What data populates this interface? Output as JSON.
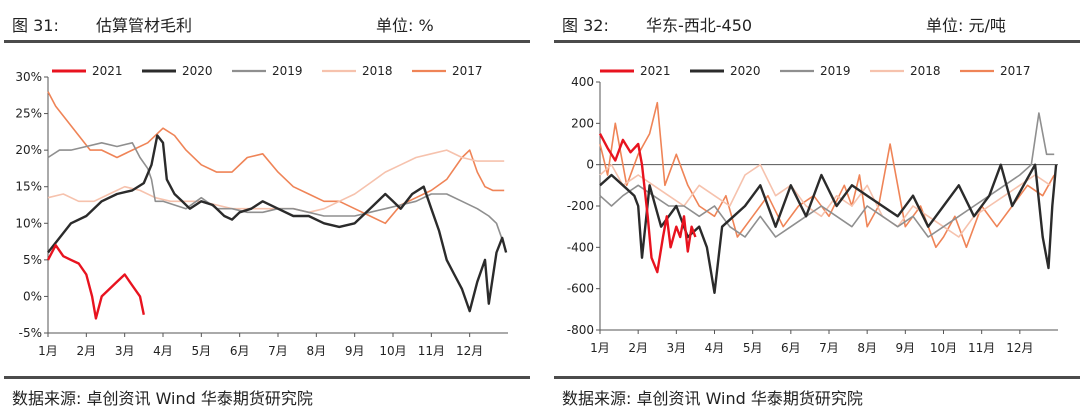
{
  "charts": [
    {
      "figure_label": "图 31:",
      "title": "估算管材毛利",
      "unit_label": "单位: %",
      "source": "数据来源: 卓创资讯 Wind 华泰期货研究院"
    },
    {
      "figure_label": "图 32:",
      "title": "华东-西北-450",
      "unit_label": "单位: 元/吨",
      "source": "数据来源: 卓创资讯 Wind 华泰期货研究院"
    }
  ],
  "chart_data": [
    {
      "type": "line",
      "title": "估算管材毛利",
      "ylabel": "%",
      "ylim": [
        -5,
        30
      ],
      "yticks": [
        -5,
        0,
        5,
        10,
        15,
        20,
        25,
        30
      ],
      "ytick_labels": [
        "-5%",
        "0%",
        "5%",
        "10%",
        "15%",
        "20%",
        "25%",
        "30%"
      ],
      "xlim": [
        1,
        13
      ],
      "xticks": [
        1,
        2,
        3,
        4,
        5,
        6,
        7,
        8,
        9,
        10,
        11,
        12
      ],
      "xtick_labels": [
        "1月",
        "2月",
        "3月",
        "4月",
        "5月",
        "6月",
        "7月",
        "8月",
        "9月",
        "10月",
        "11月",
        "12月"
      ],
      "legend": "top",
      "series": [
        {
          "name": "2021",
          "color": "#e8131f",
          "width": 2.4,
          "x": [
            1.0,
            1.2,
            1.4,
            1.6,
            1.8,
            2.0,
            2.15,
            2.25,
            2.4,
            2.6,
            2.8,
            3.0,
            3.2,
            3.4,
            3.5
          ],
          "y": [
            5,
            7,
            5.5,
            5,
            4.5,
            3,
            0,
            -3,
            0,
            1,
            2,
            3,
            1.5,
            0,
            -2.5
          ]
        },
        {
          "name": "2020",
          "color": "#2b2b2b",
          "width": 2.4,
          "x": [
            1.0,
            1.3,
            1.6,
            2.0,
            2.4,
            2.8,
            3.2,
            3.5,
            3.7,
            3.85,
            4.0,
            4.1,
            4.3,
            4.5,
            4.7,
            5.0,
            5.3,
            5.6,
            5.8,
            6.0,
            6.3,
            6.6,
            7.0,
            7.4,
            7.8,
            8.2,
            8.6,
            9.0,
            9.4,
            9.8,
            10.0,
            10.2,
            10.5,
            10.8,
            11.0,
            11.2,
            11.4,
            11.6,
            11.8,
            12.0,
            12.2,
            12.4,
            12.5,
            12.7,
            12.85,
            12.95
          ],
          "y": [
            6,
            8,
            10,
            11,
            13,
            14,
            14.5,
            15.5,
            18,
            22,
            21,
            16,
            14,
            13,
            12,
            13,
            12.5,
            11,
            10.5,
            11.5,
            12,
            13,
            12,
            11,
            11,
            10,
            9.5,
            10,
            12,
            14,
            13,
            12,
            14,
            15,
            12,
            9,
            5,
            3,
            1,
            -2,
            2,
            5,
            -1,
            6,
            8,
            6
          ]
        },
        {
          "name": "2019",
          "color": "#8f8f8f",
          "width": 1.6,
          "x": [
            1.0,
            1.3,
            1.6,
            2.0,
            2.4,
            2.8,
            3.2,
            3.4,
            3.6,
            3.7,
            3.8,
            4.0,
            4.3,
            4.6,
            5.0,
            5.4,
            5.8,
            6.2,
            6.6,
            7.0,
            7.4,
            7.8,
            8.2,
            8.6,
            9.0,
            9.4,
            9.8,
            10.2,
            10.6,
            11.0,
            11.4,
            11.8,
            12.2,
            12.5,
            12.7,
            12.9
          ],
          "y": [
            19,
            20,
            20,
            20.5,
            21,
            20.5,
            21,
            19,
            17.5,
            16,
            13,
            13,
            12.5,
            12,
            13.5,
            12,
            12,
            11.5,
            11.5,
            12,
            12,
            11.5,
            11,
            11,
            11,
            11.5,
            12,
            12.5,
            13,
            14,
            14,
            13,
            12,
            11,
            10,
            7
          ]
        },
        {
          "name": "2018",
          "color": "#f6c2ad",
          "width": 1.6,
          "x": [
            1.0,
            1.4,
            1.8,
            2.2,
            2.6,
            3.0,
            3.4,
            3.8,
            4.2,
            4.6,
            5.0,
            5.4,
            5.8,
            6.2,
            6.6,
            7.0,
            7.4,
            7.8,
            8.2,
            8.6,
            9.0,
            9.4,
            9.8,
            10.2,
            10.6,
            11.0,
            11.4,
            11.8,
            12.2,
            12.6,
            12.9
          ],
          "y": [
            13.5,
            14,
            13,
            13,
            14,
            15,
            14.5,
            13.5,
            13,
            13,
            13,
            12.5,
            12,
            12,
            12,
            12,
            12,
            11.5,
            12,
            13,
            14,
            15.5,
            17,
            18,
            19,
            19.5,
            20,
            19,
            18.5,
            18.5,
            18.5
          ]
        },
        {
          "name": "2017",
          "color": "#ef8457",
          "width": 1.6,
          "x": [
            1.0,
            1.2,
            1.5,
            1.8,
            2.1,
            2.4,
            2.8,
            3.2,
            3.6,
            4.0,
            4.3,
            4.6,
            5.0,
            5.4,
            5.8,
            6.2,
            6.6,
            7.0,
            7.4,
            7.8,
            8.2,
            8.6,
            9.0,
            9.4,
            9.8,
            10.2,
            10.6,
            11.0,
            11.4,
            11.8,
            12.0,
            12.2,
            12.4,
            12.6,
            12.9
          ],
          "y": [
            28,
            26,
            24,
            22,
            20,
            20,
            19,
            20,
            21,
            23,
            22,
            20,
            18,
            17,
            17,
            19,
            19.5,
            17,
            15,
            14,
            13,
            13,
            12,
            11,
            10,
            12.5,
            13.5,
            14.5,
            16,
            19,
            20,
            17,
            15,
            14.5,
            14.5
          ]
        }
      ]
    },
    {
      "type": "line",
      "title": "华东-西北-450",
      "ylabel": "元/吨",
      "ylim": [
        -800,
        400
      ],
      "yticks": [
        -800,
        -600,
        -400,
        -200,
        0,
        200,
        400
      ],
      "ytick_labels": [
        "-800",
        "-600",
        "-400",
        "-200",
        "0",
        "200",
        "400"
      ],
      "xlim": [
        1,
        13
      ],
      "xticks": [
        1,
        2,
        3,
        4,
        5,
        6,
        7,
        8,
        9,
        10,
        11,
        12
      ],
      "xtick_labels": [
        "1月",
        "2月",
        "3月",
        "4月",
        "5月",
        "6月",
        "7月",
        "8月",
        "9月",
        "10月",
        "11月",
        "12月"
      ],
      "legend": "top",
      "series": [
        {
          "name": "2021",
          "color": "#e8131f",
          "width": 2.4,
          "x": [
            1.0,
            1.2,
            1.4,
            1.6,
            1.8,
            2.0,
            2.1,
            2.25,
            2.35,
            2.5,
            2.65,
            2.75,
            2.85,
            3.0,
            3.1,
            3.2,
            3.3,
            3.4,
            3.5
          ],
          "y": [
            150,
            80,
            20,
            120,
            60,
            100,
            0,
            -250,
            -450,
            -520,
            -350,
            -250,
            -400,
            -300,
            -350,
            -250,
            -420,
            -300,
            -350
          ]
        },
        {
          "name": "2020",
          "color": "#2b2b2b",
          "width": 2.4,
          "x": [
            1.0,
            1.3,
            1.6,
            1.9,
            2.0,
            2.1,
            2.3,
            2.6,
            3.0,
            3.3,
            3.6,
            3.8,
            4.0,
            4.2,
            4.5,
            4.8,
            5.2,
            5.6,
            6.0,
            6.4,
            6.8,
            7.2,
            7.6,
            8.0,
            8.4,
            8.8,
            9.2,
            9.6,
            10.0,
            10.4,
            10.8,
            11.2,
            11.5,
            11.8,
            12.1,
            12.4,
            12.6,
            12.75,
            12.85,
            12.95
          ],
          "y": [
            -100,
            -50,
            -100,
            -150,
            -200,
            -450,
            -100,
            -300,
            -200,
            -350,
            -300,
            -400,
            -620,
            -300,
            -250,
            -200,
            -100,
            -300,
            -100,
            -250,
            -50,
            -200,
            -100,
            -150,
            -200,
            -250,
            -150,
            -300,
            -200,
            -100,
            -250,
            -150,
            0,
            -200,
            -100,
            0,
            -350,
            -500,
            -200,
            0
          ]
        },
        {
          "name": "2019",
          "color": "#8f8f8f",
          "width": 1.6,
          "x": [
            1.0,
            1.3,
            1.6,
            2.0,
            2.4,
            2.8,
            3.2,
            3.6,
            4.0,
            4.4,
            4.8,
            5.2,
            5.6,
            6.0,
            6.4,
            6.8,
            7.2,
            7.6,
            8.0,
            8.4,
            8.8,
            9.2,
            9.6,
            10.0,
            10.4,
            10.8,
            11.2,
            11.6,
            12.0,
            12.3,
            12.5,
            12.7,
            12.9
          ],
          "y": [
            -150,
            -200,
            -150,
            -100,
            -150,
            -200,
            -200,
            -250,
            -200,
            -300,
            -350,
            -250,
            -350,
            -300,
            -250,
            -200,
            -250,
            -300,
            -200,
            -250,
            -300,
            -250,
            -350,
            -300,
            -250,
            -200,
            -150,
            -100,
            -50,
            0,
            250,
            50,
            50
          ]
        },
        {
          "name": "2018",
          "color": "#f6c2ad",
          "width": 1.6,
          "x": [
            1.0,
            1.3,
            1.6,
            2.0,
            2.4,
            2.8,
            3.2,
            3.6,
            4.0,
            4.4,
            4.8,
            5.2,
            5.6,
            6.0,
            6.4,
            6.8,
            7.2,
            7.6,
            8.0,
            8.4,
            8.8,
            9.2,
            9.6,
            10.0,
            10.4,
            10.8,
            11.2,
            11.6,
            12.0,
            12.4,
            12.8
          ],
          "y": [
            -50,
            0,
            -100,
            -50,
            -100,
            -150,
            -200,
            -100,
            -150,
            -200,
            -50,
            0,
            -150,
            -100,
            -200,
            -250,
            -150,
            -200,
            -100,
            -250,
            -300,
            -200,
            -250,
            -300,
            -350,
            -250,
            -200,
            -150,
            -100,
            -50,
            -100
          ]
        },
        {
          "name": "2017",
          "color": "#ef8457",
          "width": 1.6,
          "x": [
            1.0,
            1.2,
            1.4,
            1.7,
            2.0,
            2.3,
            2.5,
            2.7,
            3.0,
            3.3,
            3.6,
            4.0,
            4.3,
            4.6,
            5.0,
            5.4,
            5.8,
            6.2,
            6.6,
            7.0,
            7.4,
            7.6,
            7.8,
            8.0,
            8.3,
            8.6,
            9.0,
            9.4,
            9.8,
            10.0,
            10.3,
            10.6,
            11.0,
            11.4,
            11.8,
            12.2,
            12.6,
            12.9
          ],
          "y": [
            100,
            -50,
            200,
            -100,
            50,
            150,
            300,
            -100,
            50,
            -100,
            -200,
            -250,
            -150,
            -350,
            -250,
            -150,
            -300,
            -200,
            -150,
            -250,
            -100,
            -200,
            -50,
            -300,
            -200,
            100,
            -300,
            -200,
            -400,
            -350,
            -250,
            -400,
            -200,
            -300,
            -200,
            -100,
            -150,
            -50
          ]
        }
      ]
    }
  ]
}
